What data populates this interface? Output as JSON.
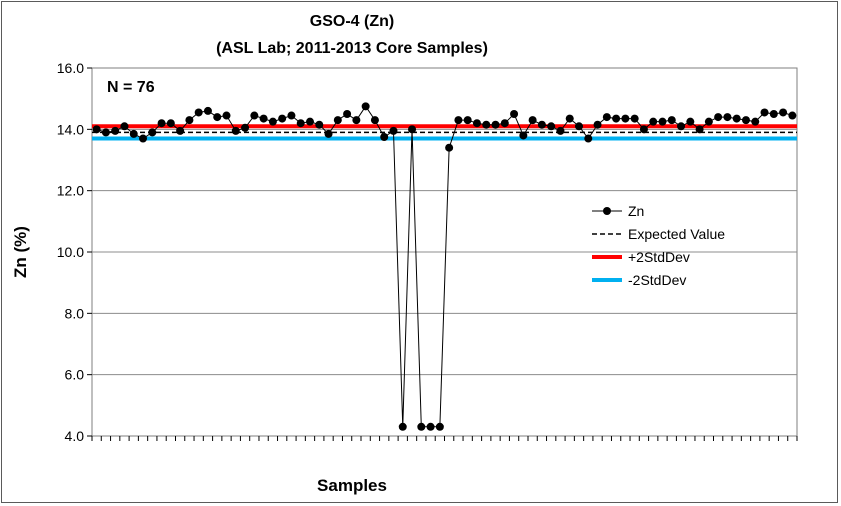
{
  "chart_data": {
    "type": "line",
    "title": "GSO-4  (Zn)",
    "subtitle": "(ASL Lab; 2011-2013 Core Samples)",
    "xlabel": "Samples",
    "ylabel": "Zn (%)",
    "annotation": "N = 76",
    "ylim": [
      4.0,
      16.0
    ],
    "yticks": [
      "4.0",
      "6.0",
      "8.0",
      "10.0",
      "12.0",
      "14.0",
      "16.0"
    ],
    "grid": true,
    "legend_position": "right",
    "x_count": 76,
    "series": [
      {
        "name": "Zn",
        "color": "#000000",
        "style": "line-marker",
        "values": [
          14.0,
          13.9,
          13.95,
          14.1,
          13.85,
          13.7,
          13.9,
          14.2,
          14.2,
          13.95,
          14.3,
          14.55,
          14.6,
          14.4,
          14.45,
          13.95,
          14.05,
          14.45,
          14.35,
          14.25,
          14.35,
          14.45,
          14.2,
          14.25,
          14.15,
          13.85,
          14.3,
          14.5,
          14.3,
          14.75,
          14.3,
          13.75,
          13.95,
          4.3,
          14.0,
          4.3,
          4.3,
          4.3,
          13.4,
          14.3,
          14.3,
          14.2,
          14.15,
          14.15,
          14.2,
          14.5,
          13.8,
          14.3,
          14.15,
          14.1,
          13.95,
          14.35,
          14.1,
          13.7,
          14.15,
          14.4,
          14.35,
          14.35,
          14.35,
          14.0,
          14.25,
          14.25,
          14.3,
          14.1,
          14.25,
          14.0,
          14.25,
          14.4,
          14.4,
          14.35,
          14.3,
          14.25,
          14.55,
          14.5,
          14.55,
          14.45
        ]
      },
      {
        "name": "Expected Value",
        "color": "#000000",
        "style": "dashed",
        "value": 13.9
      },
      {
        "name": "+2StdDev",
        "color": "#ff0000",
        "style": "solid",
        "value": 14.1
      },
      {
        "name": "-2StdDev",
        "color": "#00b0f0",
        "style": "solid",
        "value": 13.7
      }
    ]
  }
}
